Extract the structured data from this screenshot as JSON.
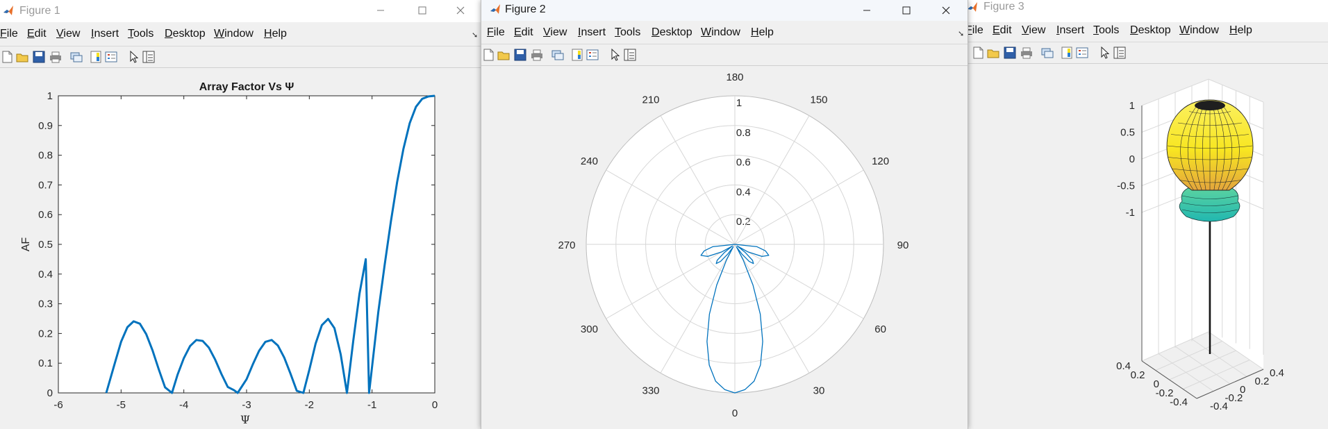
{
  "windows": {
    "fig1": {
      "title": "Figure 1"
    },
    "fig2": {
      "title": "Figure 2"
    },
    "fig3": {
      "title": "Figure 3"
    }
  },
  "menu": [
    "File",
    "Edit",
    "View",
    "Insert",
    "Tools",
    "Desktop",
    "Window",
    "Help"
  ],
  "toolbar_icons": [
    "new-figure-icon",
    "open-file-icon",
    "save-icon",
    "print-icon",
    "link-plot-icon",
    "colorbar-icon",
    "legend-icon",
    "edit-plot-icon",
    "property-inspector-icon"
  ],
  "colors": {
    "line": "#0072bd",
    "axis": "#262626",
    "grid": "#d9d9d9",
    "polar_grid": "#d6d6d6",
    "surface_top": "#f8e621",
    "surface_mid": "#e3a53c",
    "surface_low": "#21b7b0"
  },
  "chart_data": [
    {
      "type": "line",
      "title": "Array Factor Vs Ψ",
      "xlabel": "Ψ",
      "ylabel": "AF",
      "xlim": [
        -6,
        0
      ],
      "ylim": [
        0,
        1
      ],
      "xticks": [
        "-6",
        "-5",
        "-4",
        "-3",
        "-2",
        "-1",
        "0"
      ],
      "yticks": [
        "0",
        "0.1",
        "0.2",
        "0.3",
        "0.4",
        "0.5",
        "0.6",
        "0.7",
        "0.8",
        "0.9",
        "1"
      ],
      "grid": false,
      "series": [
        {
          "x": [
            -5.236,
            -5.1,
            -5.0,
            -4.9,
            -4.8,
            -4.7,
            -4.6,
            -4.5,
            -4.4,
            -4.3,
            -4.189,
            -4.1,
            -4.0,
            -3.9,
            -3.8,
            -3.7,
            -3.6,
            -3.5,
            -3.4,
            -3.3,
            -3.2,
            -3.142,
            -3.0,
            -2.9,
            -2.8,
            -2.7,
            -2.6,
            -2.5,
            -2.4,
            -2.3,
            -2.2,
            -2.094,
            -2.0,
            -1.9,
            -1.8,
            -1.7,
            -1.6,
            -1.5,
            -1.4,
            -1.3,
            -1.2,
            -1.1,
            -1.047,
            -0.9,
            -0.8,
            -0.7,
            -0.6,
            -0.5,
            -0.4,
            -0.3,
            -0.2,
            -0.1,
            0.0
          ],
          "y": [
            0.0,
            0.1,
            0.172,
            0.221,
            0.241,
            0.233,
            0.198,
            0.144,
            0.08,
            0.019,
            0.0,
            0.061,
            0.117,
            0.158,
            0.178,
            0.175,
            0.152,
            0.112,
            0.063,
            0.02,
            0.009,
            0.0,
            0.046,
            0.096,
            0.142,
            0.172,
            0.178,
            0.159,
            0.119,
            0.065,
            0.007,
            0.0,
            0.077,
            0.166,
            0.228,
            0.249,
            0.218,
            0.13,
            0.0,
            0.175,
            0.334,
            0.45,
            0.0,
            0.273,
            0.429,
            0.577,
            0.71,
            0.821,
            0.908,
            0.963,
            0.99,
            0.998,
            1.0
          ]
        }
      ]
    },
    {
      "type": "polar",
      "theta_zero": "bottom",
      "theta_direction": "counterclockwise",
      "angle_ticks": [
        "0",
        "30",
        "60",
        "90",
        "120",
        "150",
        "180",
        "210",
        "240",
        "270",
        "300",
        "330"
      ],
      "rlim": [
        0,
        1
      ],
      "rticks": [
        "0.2",
        "0.4",
        "0.6",
        "0.8",
        "1"
      ],
      "series": [
        {
          "theta_deg": [
            -90,
            -84,
            -78,
            -72,
            -66,
            -60,
            -56,
            -52,
            -48,
            -44,
            -40,
            -36,
            -32,
            -28,
            -24,
            -20,
            -16,
            -12,
            -8,
            -4,
            0,
            4,
            8,
            12,
            16,
            20,
            24,
            28,
            32,
            36,
            40,
            44,
            48,
            52,
            56,
            60,
            66,
            72,
            78,
            84,
            90
          ],
          "r": [
            0.0,
            0.15,
            0.21,
            0.24,
            0.2,
            0.1,
            0.02,
            0.09,
            0.16,
            0.18,
            0.15,
            0.08,
            0.02,
            0.12,
            0.3,
            0.5,
            0.68,
            0.83,
            0.93,
            0.98,
            1.0,
            0.98,
            0.93,
            0.83,
            0.68,
            0.5,
            0.3,
            0.12,
            0.02,
            0.08,
            0.15,
            0.18,
            0.16,
            0.09,
            0.02,
            0.1,
            0.2,
            0.24,
            0.21,
            0.15,
            0.0
          ]
        }
      ]
    },
    {
      "type": "surface3d",
      "zticks": [
        "-1",
        "-0.5",
        "0",
        "0.5",
        "1"
      ],
      "xticks": [
        "-0.4",
        "-0.2",
        "0",
        "0.2",
        "0.4"
      ],
      "yticks": [
        "-0.4",
        "-0.2",
        "0",
        "0.2",
        "0.4"
      ],
      "grid": true
    }
  ]
}
